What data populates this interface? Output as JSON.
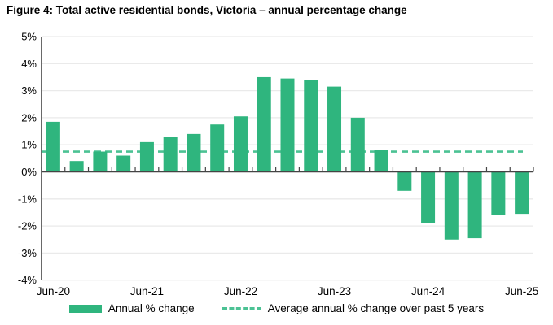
{
  "figure": {
    "title": "Figure 4: Total active residential bonds, Victoria – annual percentage change"
  },
  "colors": {
    "bar": "#2FB57E",
    "average_line": "#4CC294",
    "gridline": "#EAEAEA",
    "axis": "#444444",
    "text": "#000000"
  },
  "chart_data": {
    "type": "bar",
    "title": "Figure 4: Total active residential bonds, Victoria – annual percentage change",
    "unit": "%",
    "categories": [
      "Jun-20",
      "Sep-20",
      "Dec-20",
      "Mar-21",
      "Jun-21",
      "Sep-21",
      "Dec-21",
      "Mar-22",
      "Jun-22",
      "Sep-22",
      "Dec-22",
      "Mar-23",
      "Jun-23",
      "Sep-23",
      "Dec-23",
      "Mar-24",
      "Jun-24",
      "Sep-24",
      "Dec-24",
      "Mar-25",
      "Jun-25"
    ],
    "values": [
      1.85,
      0.4,
      0.75,
      0.6,
      1.1,
      1.3,
      1.4,
      1.75,
      2.05,
      3.5,
      3.45,
      3.4,
      3.15,
      2.0,
      0.8,
      -0.7,
      -1.9,
      -2.5,
      -2.45,
      -1.6,
      -1.55
    ],
    "average_line_value": 0.75,
    "ylim": [
      -4,
      5
    ],
    "y_ticks": [
      5,
      4,
      3,
      2,
      1,
      0,
      -1,
      -2,
      -3,
      -4
    ],
    "y_tick_labels": [
      "5%",
      "4%",
      "3%",
      "2%",
      "1%",
      "0%",
      "-1%",
      "-2%",
      "-3%",
      "-4%"
    ],
    "x_tick_labels": [
      "Jun-20",
      "Jun-21",
      "Jun-22",
      "Jun-23",
      "Jun-24",
      "Jun-25"
    ],
    "x_tick_every": 4,
    "grid": "horizontal",
    "legend_position": "bottom",
    "legend": {
      "annual": "Annual % change",
      "average": "Average annual % change over past 5 years"
    }
  }
}
